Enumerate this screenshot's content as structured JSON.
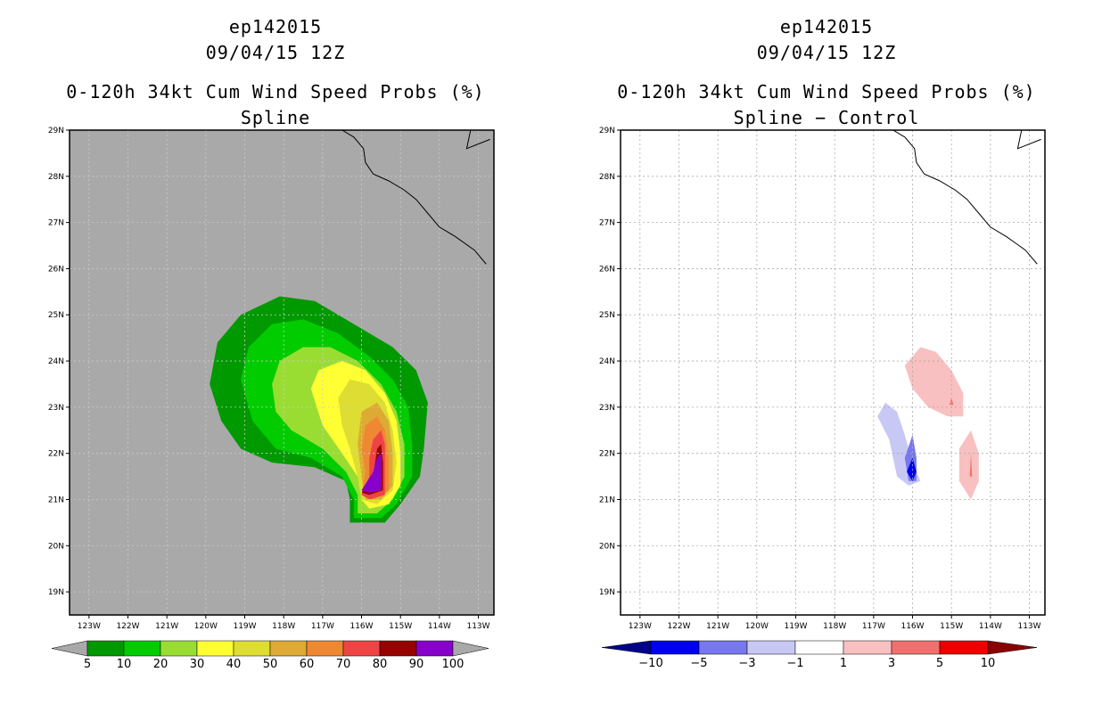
{
  "panels": [
    {
      "id": "left",
      "storm_id": "ep142015",
      "datetime": "09/04/15 12Z",
      "title": "0-120h 34kt Cum Wind Speed Probs (%)",
      "subtitle": "Spline",
      "background": "#a9a9a9",
      "colorbar": {
        "levels": [
          "5",
          "10",
          "20",
          "30",
          "40",
          "50",
          "60",
          "70",
          "80",
          "90",
          "100"
        ],
        "colors": [
          "#009900",
          "#00cc00",
          "#99dd33",
          "#ffff33",
          "#dddd33",
          "#ddaa33",
          "#ee8833",
          "#ee4444",
          "#990000",
          "#8800cc"
        ],
        "end_color": "#a9a9a9"
      }
    },
    {
      "id": "right",
      "storm_id": "ep142015",
      "datetime": "09/04/15 12Z",
      "title": "0-120h 34kt Cum Wind Speed Probs (%)",
      "subtitle": "Spline − Control",
      "background": "#ffffff",
      "colorbar": {
        "levels": [
          "−10",
          "−5",
          "−3",
          "−1",
          "1",
          "3",
          "5",
          "10"
        ],
        "colors": [
          "#0000ee",
          "#7777ee",
          "#c8c8f4",
          "#ffffff",
          "#f8c0c0",
          "#f07070",
          "#ee0000"
        ],
        "end_color_low": "#00008b",
        "end_color_high": "#8b0000"
      }
    }
  ],
  "chart_data": {
    "type": "heatmap",
    "x_ticks": [
      "123W",
      "122W",
      "121W",
      "120W",
      "119W",
      "118W",
      "117W",
      "116W",
      "115W",
      "114W",
      "113W"
    ],
    "y_ticks": [
      "29N",
      "28N",
      "27N",
      "26N",
      "25N",
      "24N",
      "23N",
      "22N",
      "21N",
      "20N",
      "19N"
    ],
    "xlim": [
      -123.5,
      -112.6
    ],
    "ylim": [
      18.5,
      29
    ],
    "spline_contours": [
      {
        "level": "5",
        "polygon": [
          [
            -119.9,
            23.5
          ],
          [
            -119.7,
            24.4
          ],
          [
            -119.1,
            25
          ],
          [
            -118.1,
            25.4
          ],
          [
            -117.2,
            25.3
          ],
          [
            -116.2,
            24.8
          ],
          [
            -115.2,
            24.3
          ],
          [
            -114.6,
            23.8
          ],
          [
            -114.3,
            23.1
          ],
          [
            -114.4,
            22.1
          ],
          [
            -114.5,
            21.5
          ],
          [
            -115.0,
            20.9
          ],
          [
            -115.4,
            20.5
          ],
          [
            -116.3,
            20.5
          ],
          [
            -116.3,
            21.0
          ],
          [
            -116.4,
            21.4
          ],
          [
            -117.2,
            21.7
          ],
          [
            -118.3,
            21.8
          ],
          [
            -119.1,
            22.1
          ],
          [
            -119.6,
            22.7
          ]
        ]
      },
      {
        "level": "10",
        "polygon": [
          [
            -119.1,
            23.6
          ],
          [
            -118.9,
            24.3
          ],
          [
            -118.3,
            24.8
          ],
          [
            -117.5,
            24.9
          ],
          [
            -116.6,
            24.6
          ],
          [
            -115.8,
            24.1
          ],
          [
            -115.2,
            23.6
          ],
          [
            -114.8,
            23.0
          ],
          [
            -114.7,
            22.2
          ],
          [
            -114.7,
            21.5
          ],
          [
            -115.1,
            20.9
          ],
          [
            -115.5,
            20.6
          ],
          [
            -116.2,
            20.6
          ],
          [
            -116.2,
            21.0
          ],
          [
            -116.5,
            21.5
          ],
          [
            -117.3,
            21.9
          ],
          [
            -118.2,
            22.1
          ],
          [
            -118.8,
            22.7
          ]
        ]
      },
      {
        "level": "20",
        "polygon": [
          [
            -118.3,
            23.5
          ],
          [
            -118.1,
            24.0
          ],
          [
            -117.5,
            24.3
          ],
          [
            -116.8,
            24.3
          ],
          [
            -116.1,
            24.0
          ],
          [
            -115.5,
            23.5
          ],
          [
            -115.1,
            22.9
          ],
          [
            -114.9,
            22.2
          ],
          [
            -114.9,
            21.5
          ],
          [
            -115.2,
            21.0
          ],
          [
            -115.6,
            20.7
          ],
          [
            -116.1,
            20.7
          ],
          [
            -116.1,
            21.1
          ],
          [
            -116.4,
            21.6
          ],
          [
            -117.0,
            22.1
          ],
          [
            -117.8,
            22.5
          ],
          [
            -118.2,
            22.9
          ]
        ]
      },
      {
        "level": "30",
        "polygon": [
          [
            -117.3,
            23.4
          ],
          [
            -117.1,
            23.8
          ],
          [
            -116.5,
            24.0
          ],
          [
            -115.9,
            23.8
          ],
          [
            -115.4,
            23.3
          ],
          [
            -115.1,
            22.7
          ],
          [
            -115.0,
            22.0
          ],
          [
            -115.0,
            21.3
          ],
          [
            -115.3,
            20.9
          ],
          [
            -115.8,
            20.8
          ],
          [
            -116.0,
            21.0
          ],
          [
            -116.1,
            21.5
          ],
          [
            -116.5,
            22.0
          ],
          [
            -117.0,
            22.6
          ]
        ]
      },
      {
        "level": "40",
        "polygon": [
          [
            -116.6,
            23.2
          ],
          [
            -116.3,
            23.6
          ],
          [
            -115.8,
            23.5
          ],
          [
            -115.4,
            23.1
          ],
          [
            -115.2,
            22.5
          ],
          [
            -115.1,
            21.8
          ],
          [
            -115.2,
            21.2
          ],
          [
            -115.6,
            20.9
          ],
          [
            -116.0,
            21.0
          ],
          [
            -116.1,
            21.5
          ],
          [
            -116.3,
            22.1
          ],
          [
            -116.5,
            22.6
          ]
        ]
      },
      {
        "level": "50",
        "polygon": [
          [
            -116.0,
            22.9
          ],
          [
            -115.6,
            23.1
          ],
          [
            -115.3,
            22.7
          ],
          [
            -115.2,
            22.0
          ],
          [
            -115.2,
            21.3
          ],
          [
            -115.5,
            21.0
          ],
          [
            -115.9,
            21.0
          ],
          [
            -116.0,
            21.5
          ],
          [
            -116.1,
            22.2
          ]
        ]
      },
      {
        "level": "60",
        "polygon": [
          [
            -115.9,
            22.6
          ],
          [
            -115.6,
            22.8
          ],
          [
            -115.4,
            22.5
          ],
          [
            -115.3,
            21.9
          ],
          [
            -115.3,
            21.2
          ],
          [
            -115.7,
            21.0
          ],
          [
            -116.0,
            21.1
          ],
          [
            -115.9,
            21.6
          ],
          [
            -116.0,
            22.1
          ]
        ]
      },
      {
        "level": "70",
        "polygon": [
          [
            -115.7,
            22.3
          ],
          [
            -115.5,
            22.5
          ],
          [
            -115.4,
            22.2
          ],
          [
            -115.4,
            21.6
          ],
          [
            -115.4,
            21.1
          ],
          [
            -115.8,
            21.0
          ],
          [
            -116.0,
            21.1
          ],
          [
            -115.8,
            21.5
          ],
          [
            -115.8,
            21.9
          ]
        ]
      },
      {
        "level": "80",
        "polygon": [
          [
            -115.6,
            22.1
          ],
          [
            -115.5,
            22.2
          ],
          [
            -115.45,
            21.8
          ],
          [
            -115.45,
            21.2
          ],
          [
            -115.8,
            21.1
          ],
          [
            -116.0,
            21.15
          ],
          [
            -115.7,
            21.5
          ]
        ]
      },
      {
        "level": "90",
        "polygon": [
          [
            -115.6,
            21.9
          ],
          [
            -115.5,
            22.0
          ],
          [
            -115.5,
            21.6
          ],
          [
            -115.5,
            21.2
          ],
          [
            -115.8,
            21.15
          ],
          [
            -116.0,
            21.2
          ],
          [
            -115.7,
            21.6
          ]
        ]
      }
    ],
    "difference_contours": [
      {
        "level": "1 to 3",
        "polygon": [
          [
            -116.2,
            23.9
          ],
          [
            -115.8,
            24.3
          ],
          [
            -115.4,
            24.2
          ],
          [
            -115.0,
            23.8
          ],
          [
            -114.7,
            23.3
          ],
          [
            -114.7,
            22.8
          ],
          [
            -115.1,
            22.8
          ],
          [
            -115.6,
            23.0
          ],
          [
            -116.0,
            23.4
          ]
        ]
      },
      {
        "level": "1 to 3",
        "polygon": [
          [
            -114.5,
            22.5
          ],
          [
            -114.3,
            22.0
          ],
          [
            -114.3,
            21.4
          ],
          [
            -114.5,
            21.0
          ],
          [
            -114.8,
            21.4
          ],
          [
            -114.8,
            22.1
          ]
        ]
      },
      {
        "level": "3 to 5",
        "polygon": [
          [
            -115.0,
            23.2
          ],
          [
            -114.95,
            23.05
          ],
          [
            -115.05,
            23.05
          ]
        ]
      },
      {
        "level": "3 to 5",
        "polygon": [
          [
            -114.5,
            22.0
          ],
          [
            -114.47,
            21.5
          ],
          [
            -114.53,
            21.5
          ]
        ]
      },
      {
        "level": "-3 to -1",
        "polygon": [
          [
            -116.7,
            23.1
          ],
          [
            -116.4,
            22.9
          ],
          [
            -116.2,
            22.4
          ],
          [
            -116.0,
            21.8
          ],
          [
            -115.8,
            21.4
          ],
          [
            -116.1,
            21.3
          ],
          [
            -116.4,
            21.5
          ],
          [
            -116.6,
            22.3
          ],
          [
            -116.9,
            22.8
          ]
        ]
      },
      {
        "level": "-5 to -3",
        "polygon": [
          [
            -116.0,
            22.4
          ],
          [
            -115.9,
            21.9
          ],
          [
            -115.9,
            21.4
          ],
          [
            -116.1,
            21.4
          ],
          [
            -116.2,
            21.9
          ]
        ]
      },
      {
        "level": "-10 to -5",
        "polygon": [
          [
            -116.0,
            21.9
          ],
          [
            -115.9,
            21.6
          ],
          [
            -116.0,
            21.4
          ],
          [
            -116.15,
            21.6
          ]
        ]
      }
    ]
  }
}
